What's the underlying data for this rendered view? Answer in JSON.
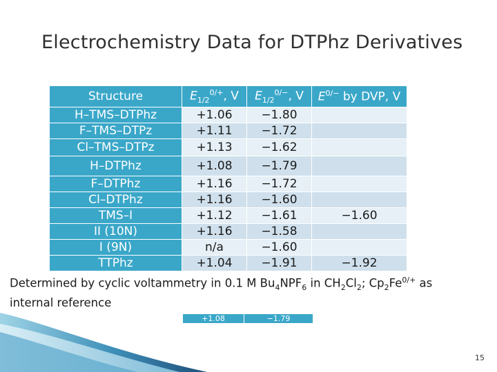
{
  "title": "Electrochemistry Data for DTPhz Derivatives",
  "table": {
    "headers": {
      "structure": "Structure",
      "e_ox": {
        "sym": "E",
        "sub": "1/2",
        "sup": "0/+",
        "unit": ", V"
      },
      "e_red": {
        "sym": "E",
        "sub": "1/2",
        "sup": "0/−",
        "unit": ", V"
      },
      "e_dvp": {
        "sym": "E",
        "sup": "0/−",
        "rest": " by DVP, V"
      }
    },
    "rows": [
      {
        "structure": "H–TMS–DTPhz",
        "e_ox": "+1.06",
        "e_red": "−1.80",
        "e_dvp": ""
      },
      {
        "structure": "F–TMS–DTPz",
        "e_ox": "+1.11",
        "e_red": "−1.72",
        "e_dvp": ""
      },
      {
        "structure": "Cl–TMS–DTPz",
        "e_ox": "+1.13",
        "e_red": "−1.62",
        "e_dvp": ""
      },
      {
        "structure": "H–DTPhz",
        "e_ox": "+1.08",
        "e_red": "−1.79",
        "e_dvp": ""
      },
      {
        "structure": "F–DTPhz",
        "e_ox": "+1.16",
        "e_red": "−1.72",
        "e_dvp": ""
      },
      {
        "structure": "Cl–DTPhz",
        "e_ox": "+1.16",
        "e_red": "−1.60",
        "e_dvp": ""
      },
      {
        "structure": "TMS–I",
        "e_ox": "+1.12",
        "e_red": "−1.61",
        "e_dvp": "−1.60"
      },
      {
        "structure": "II (10N)",
        "e_ox": "+1.16",
        "e_red": "−1.58",
        "e_dvp": ""
      },
      {
        "structure": "I (9N)",
        "e_ox": "n/a",
        "e_red": "−1.60",
        "e_dvp": ""
      },
      {
        "structure": "TTPhz",
        "e_ox": "+1.04",
        "e_red": "−1.91",
        "e_dvp": "−1.92"
      }
    ]
  },
  "footnote": {
    "part1": "Determined by cyclic voltammetry in 0.1 M Bu",
    "sub1": "4",
    "part2": "NPF",
    "sub2": "6",
    "part3": " in CH",
    "sub3": "2",
    "part4": "Cl",
    "sub4": "2",
    "part5": "; Cp",
    "sub5": "2",
    "part6": "Fe",
    "sup6": "0/+",
    "part7": " as internal reference"
  },
  "small_table": {
    "values": [
      "+1.08",
      "−1.79"
    ]
  },
  "page_number": "15",
  "colors": {
    "accent": "#3aa7c9",
    "row_light": "#e6f0f6",
    "row_mid": "#cfe0ec",
    "swoosh_dark": "#1f4f7a"
  }
}
